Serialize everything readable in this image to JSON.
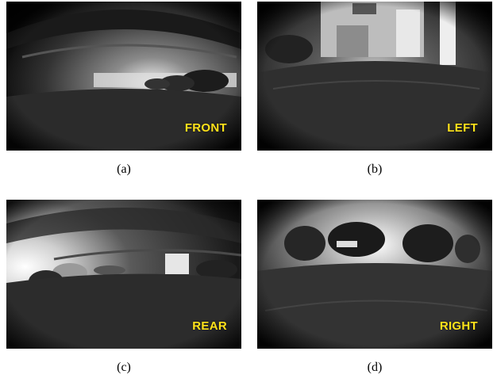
{
  "panels": [
    {
      "id": "a",
      "label": "FRONT",
      "caption": "(a)"
    },
    {
      "id": "b",
      "label": "LEFT",
      "caption": "(b)"
    },
    {
      "id": "c",
      "label": "REAR",
      "caption": "(c)"
    },
    {
      "id": "d",
      "label": "RIGHT",
      "caption": "(d)"
    }
  ],
  "colors": {
    "label": "#ffe21a"
  }
}
